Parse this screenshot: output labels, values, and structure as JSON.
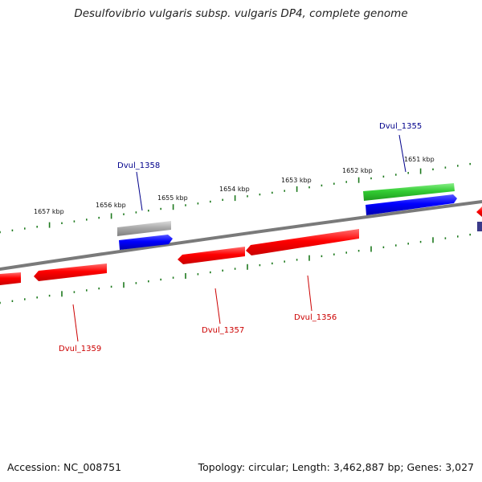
{
  "header": {
    "title": "Desulfovibrio vulgaris subsp. vulgaris DP4, complete genome"
  },
  "footer": {
    "accession": "Accession: NC_008751",
    "summary": "Topology: circular; Length: 3,462,887 bp; Genes: 3,027"
  },
  "colors": {
    "backbone": "#7a7a7a",
    "tick": "#1e7a1e",
    "cds_reverse": "#ff0000",
    "cds_forward_blue": "#0000ff",
    "cds_forward_green": "#33cc33",
    "pseudo_gray": "#aaaaaa",
    "label_forward": "#00008b",
    "label_reverse": "#cc0000"
  },
  "ruler_labels": [
    "1651 kbp",
    "1652 kbp",
    "1653 kbp",
    "1654 kbp",
    "1655 kbp",
    "1656 kbp",
    "1657 kbp"
  ],
  "gene_labels": [
    {
      "name": "Dvul_1355",
      "strand": "forward"
    },
    {
      "name": "Dvul_1356",
      "strand": "reverse"
    },
    {
      "name": "Dvul_1357",
      "strand": "reverse"
    },
    {
      "name": "Dvul_1358",
      "strand": "forward"
    },
    {
      "name": "Dvul_1359",
      "strand": "reverse"
    }
  ]
}
